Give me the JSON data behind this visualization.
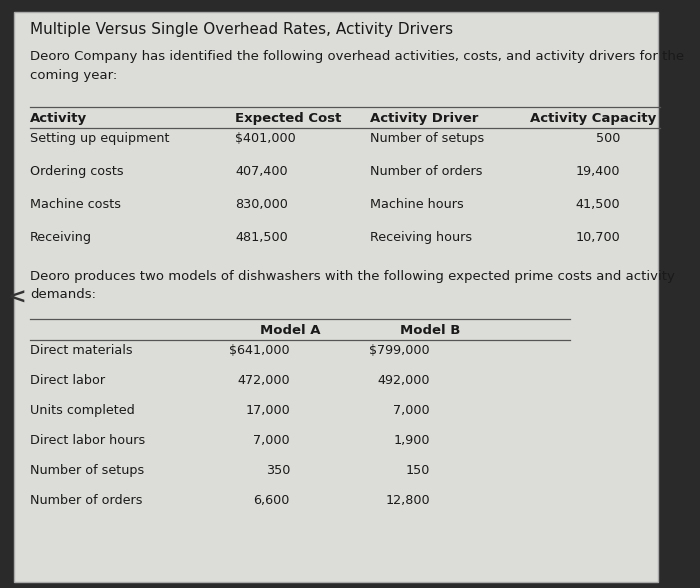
{
  "title": "Multiple Versus Single Overhead Rates, Activity Drivers",
  "intro_text": "Deoro Company has identified the following overhead activities, costs, and activity drivers for the\ncoming year:",
  "table1_headers": [
    "Activity",
    "Expected Cost",
    "Activity Driver",
    "Activity Capacity"
  ],
  "table1_rows": [
    [
      "Setting up equipment",
      "$401,000",
      "Number of setups",
      "500"
    ],
    [
      "Ordering costs",
      "407,400",
      "Number of orders",
      "19,400"
    ],
    [
      "Machine costs",
      "830,000",
      "Machine hours",
      "41,500"
    ],
    [
      "Receiving",
      "481,500",
      "Receiving hours",
      "10,700"
    ]
  ],
  "middle_text": "Deoro produces two models of dishwashers with the following expected prime costs and activity\ndemands:",
  "table2_headers": [
    "",
    "Model A",
    "Model B"
  ],
  "table2_rows": [
    [
      "Direct materials",
      "$641,000",
      "$799,000"
    ],
    [
      "Direct labor",
      "472,000",
      "492,000"
    ],
    [
      "Units completed",
      "17,000",
      "7,000"
    ],
    [
      "Direct labor hours",
      "7,000",
      "1,900"
    ],
    [
      "Number of setups",
      "350",
      "150"
    ],
    [
      "Number of orders",
      "6,600",
      "12,800"
    ]
  ],
  "outer_bg": "#2a2a2a",
  "panel_bg": "#dcddd8",
  "text_color": "#1a1a1a",
  "line_color": "#555555",
  "arrow_color": "#333333"
}
